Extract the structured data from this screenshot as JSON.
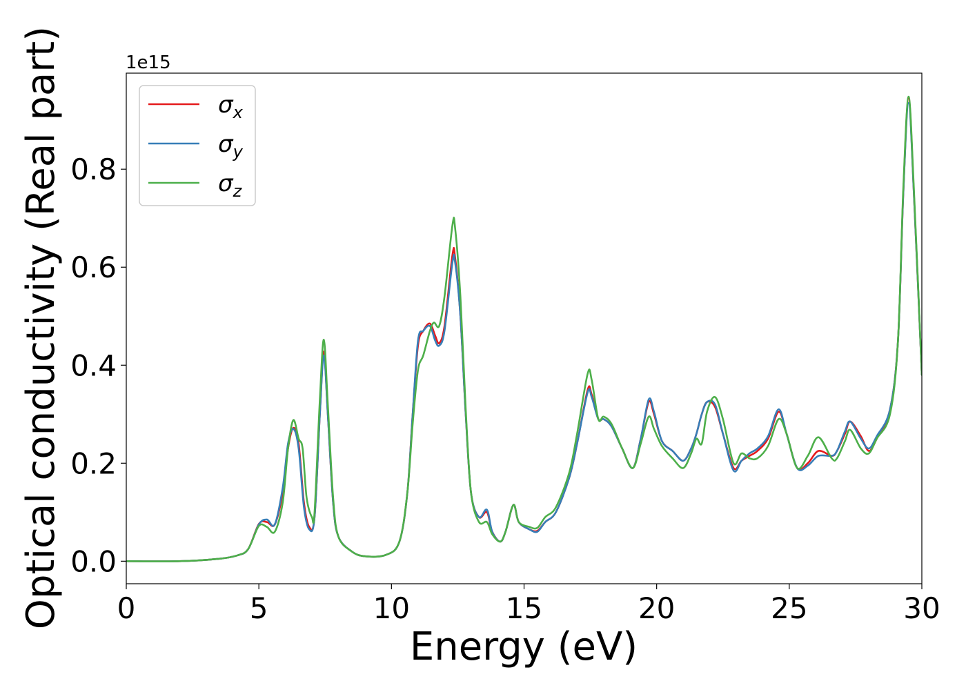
{
  "chart_data": {
    "type": "line",
    "xlabel": "Energy (eV)",
    "ylabel": "Optical conductivity (Real part)",
    "y_offset_label": "1e15",
    "y_scale_factor": 1000000000000000.0,
    "xlim": [
      0,
      30
    ],
    "ylim": [
      -0.046,
      0.996
    ],
    "xticks": [
      0,
      5,
      10,
      15,
      20,
      25,
      30
    ],
    "xtick_labels": [
      "0",
      "5",
      "10",
      "15",
      "20",
      "25",
      "30"
    ],
    "yticks": [
      0.0,
      0.2,
      0.4,
      0.6,
      0.8
    ],
    "ytick_labels": [
      "0.0",
      "0.2",
      "0.4",
      "0.6",
      "0.8"
    ],
    "grid": false,
    "legend_position": "top-left",
    "series": [
      {
        "name": "σx",
        "symbol": "σ",
        "subscript": "x",
        "color": "#e41a1c",
        "points": [
          [
            0,
            0.0
          ],
          [
            2,
            0.0
          ],
          [
            3.5,
            0.005
          ],
          [
            4.2,
            0.012
          ],
          [
            4.6,
            0.025
          ],
          [
            5.0,
            0.076
          ],
          [
            5.3,
            0.08
          ],
          [
            5.6,
            0.075
          ],
          [
            5.9,
            0.14
          ],
          [
            6.1,
            0.23
          ],
          [
            6.3,
            0.272
          ],
          [
            6.5,
            0.24
          ],
          [
            6.7,
            0.12
          ],
          [
            6.9,
            0.07
          ],
          [
            7.1,
            0.09
          ],
          [
            7.3,
            0.3
          ],
          [
            7.45,
            0.428
          ],
          [
            7.6,
            0.3
          ],
          [
            7.8,
            0.12
          ],
          [
            8.0,
            0.05
          ],
          [
            8.5,
            0.02
          ],
          [
            9.0,
            0.01
          ],
          [
            9.8,
            0.013
          ],
          [
            10.3,
            0.04
          ],
          [
            10.6,
            0.14
          ],
          [
            10.8,
            0.3
          ],
          [
            11.0,
            0.44
          ],
          [
            11.2,
            0.47
          ],
          [
            11.45,
            0.485
          ],
          [
            11.65,
            0.46
          ],
          [
            11.8,
            0.445
          ],
          [
            12.0,
            0.48
          ],
          [
            12.3,
            0.625
          ],
          [
            12.4,
            0.62
          ],
          [
            12.6,
            0.5
          ],
          [
            12.8,
            0.3
          ],
          [
            13.0,
            0.14
          ],
          [
            13.3,
            0.09
          ],
          [
            13.6,
            0.1
          ],
          [
            13.8,
            0.06
          ],
          [
            14.1,
            0.04
          ],
          [
            14.3,
            0.06
          ],
          [
            14.6,
            0.115
          ],
          [
            14.8,
            0.08
          ],
          [
            15.2,
            0.065
          ],
          [
            15.5,
            0.062
          ],
          [
            15.8,
            0.08
          ],
          [
            16.2,
            0.1
          ],
          [
            16.7,
            0.17
          ],
          [
            17.0,
            0.24
          ],
          [
            17.4,
            0.35
          ],
          [
            17.55,
            0.34
          ],
          [
            17.8,
            0.29
          ],
          [
            18.0,
            0.29
          ],
          [
            18.3,
            0.275
          ],
          [
            18.7,
            0.23
          ],
          [
            19.1,
            0.19
          ],
          [
            19.4,
            0.25
          ],
          [
            19.7,
            0.325
          ],
          [
            19.9,
            0.3
          ],
          [
            20.2,
            0.245
          ],
          [
            20.6,
            0.225
          ],
          [
            21.0,
            0.205
          ],
          [
            21.3,
            0.23
          ],
          [
            21.5,
            0.26
          ],
          [
            21.7,
            0.3
          ],
          [
            21.9,
            0.325
          ],
          [
            22.2,
            0.315
          ],
          [
            22.5,
            0.26
          ],
          [
            22.9,
            0.19
          ],
          [
            23.2,
            0.205
          ],
          [
            23.5,
            0.215
          ],
          [
            23.8,
            0.225
          ],
          [
            24.2,
            0.25
          ],
          [
            24.6,
            0.305
          ],
          [
            24.9,
            0.26
          ],
          [
            25.3,
            0.19
          ],
          [
            25.7,
            0.2
          ],
          [
            26.1,
            0.225
          ],
          [
            26.6,
            0.215
          ],
          [
            26.8,
            0.225
          ],
          [
            27.1,
            0.26
          ],
          [
            27.3,
            0.285
          ],
          [
            27.7,
            0.255
          ],
          [
            28.0,
            0.225
          ],
          [
            28.3,
            0.25
          ],
          [
            28.8,
            0.31
          ],
          [
            29.1,
            0.45
          ],
          [
            29.3,
            0.75
          ],
          [
            29.5,
            0.945
          ],
          [
            29.7,
            0.75
          ],
          [
            30.0,
            0.38
          ]
        ]
      },
      {
        "name": "σy",
        "symbol": "σ",
        "subscript": "y",
        "color": "#377eb8",
        "points": [
          [
            0,
            0.0
          ],
          [
            2,
            0.0
          ],
          [
            3.5,
            0.005
          ],
          [
            4.2,
            0.012
          ],
          [
            4.6,
            0.025
          ],
          [
            5.0,
            0.075
          ],
          [
            5.3,
            0.085
          ],
          [
            5.6,
            0.075
          ],
          [
            5.9,
            0.15
          ],
          [
            6.1,
            0.24
          ],
          [
            6.3,
            0.27
          ],
          [
            6.5,
            0.23
          ],
          [
            6.7,
            0.11
          ],
          [
            6.9,
            0.065
          ],
          [
            7.1,
            0.09
          ],
          [
            7.3,
            0.3
          ],
          [
            7.45,
            0.42
          ],
          [
            7.6,
            0.3
          ],
          [
            7.8,
            0.12
          ],
          [
            8.0,
            0.05
          ],
          [
            8.5,
            0.02
          ],
          [
            9.0,
            0.01
          ],
          [
            9.8,
            0.013
          ],
          [
            10.3,
            0.04
          ],
          [
            10.6,
            0.14
          ],
          [
            10.8,
            0.3
          ],
          [
            11.0,
            0.45
          ],
          [
            11.2,
            0.47
          ],
          [
            11.45,
            0.48
          ],
          [
            11.65,
            0.45
          ],
          [
            11.8,
            0.44
          ],
          [
            12.0,
            0.47
          ],
          [
            12.3,
            0.61
          ],
          [
            12.4,
            0.61
          ],
          [
            12.6,
            0.5
          ],
          [
            12.8,
            0.3
          ],
          [
            13.0,
            0.14
          ],
          [
            13.3,
            0.09
          ],
          [
            13.6,
            0.105
          ],
          [
            13.8,
            0.06
          ],
          [
            14.1,
            0.04
          ],
          [
            14.3,
            0.06
          ],
          [
            14.6,
            0.115
          ],
          [
            14.8,
            0.08
          ],
          [
            15.2,
            0.065
          ],
          [
            15.5,
            0.06
          ],
          [
            15.8,
            0.08
          ],
          [
            16.2,
            0.1
          ],
          [
            16.7,
            0.17
          ],
          [
            17.0,
            0.24
          ],
          [
            17.4,
            0.345
          ],
          [
            17.55,
            0.335
          ],
          [
            17.8,
            0.29
          ],
          [
            18.0,
            0.29
          ],
          [
            18.3,
            0.275
          ],
          [
            18.7,
            0.23
          ],
          [
            19.1,
            0.19
          ],
          [
            19.4,
            0.25
          ],
          [
            19.7,
            0.33
          ],
          [
            19.9,
            0.305
          ],
          [
            20.2,
            0.245
          ],
          [
            20.6,
            0.225
          ],
          [
            21.0,
            0.205
          ],
          [
            21.3,
            0.23
          ],
          [
            21.5,
            0.26
          ],
          [
            21.7,
            0.3
          ],
          [
            21.9,
            0.325
          ],
          [
            22.2,
            0.32
          ],
          [
            22.5,
            0.26
          ],
          [
            22.9,
            0.185
          ],
          [
            23.2,
            0.205
          ],
          [
            23.5,
            0.22
          ],
          [
            23.8,
            0.23
          ],
          [
            24.2,
            0.255
          ],
          [
            24.6,
            0.31
          ],
          [
            24.9,
            0.26
          ],
          [
            25.3,
            0.19
          ],
          [
            25.7,
            0.195
          ],
          [
            26.1,
            0.215
          ],
          [
            26.6,
            0.215
          ],
          [
            26.8,
            0.225
          ],
          [
            27.1,
            0.265
          ],
          [
            27.3,
            0.285
          ],
          [
            27.7,
            0.25
          ],
          [
            28.0,
            0.23
          ],
          [
            28.3,
            0.255
          ],
          [
            28.8,
            0.31
          ],
          [
            29.1,
            0.45
          ],
          [
            29.3,
            0.75
          ],
          [
            29.5,
            0.935
          ],
          [
            29.7,
            0.75
          ],
          [
            30.0,
            0.38
          ]
        ]
      },
      {
        "name": "σz",
        "symbol": "σ",
        "subscript": "z",
        "color": "#4daf4a",
        "points": [
          [
            0,
            0.0
          ],
          [
            2,
            0.0
          ],
          [
            3.5,
            0.005
          ],
          [
            4.2,
            0.012
          ],
          [
            4.6,
            0.025
          ],
          [
            5.0,
            0.072
          ],
          [
            5.3,
            0.07
          ],
          [
            5.6,
            0.06
          ],
          [
            5.9,
            0.12
          ],
          [
            6.1,
            0.23
          ],
          [
            6.3,
            0.288
          ],
          [
            6.5,
            0.25
          ],
          [
            6.65,
            0.23
          ],
          [
            6.8,
            0.13
          ],
          [
            7.0,
            0.09
          ],
          [
            7.1,
            0.1
          ],
          [
            7.3,
            0.33
          ],
          [
            7.45,
            0.452
          ],
          [
            7.6,
            0.32
          ],
          [
            7.8,
            0.13
          ],
          [
            8.0,
            0.05
          ],
          [
            8.5,
            0.02
          ],
          [
            9.0,
            0.01
          ],
          [
            9.8,
            0.013
          ],
          [
            10.3,
            0.04
          ],
          [
            10.6,
            0.14
          ],
          [
            10.8,
            0.28
          ],
          [
            11.0,
            0.39
          ],
          [
            11.2,
            0.42
          ],
          [
            11.45,
            0.47
          ],
          [
            11.6,
            0.487
          ],
          [
            11.8,
            0.48
          ],
          [
            12.0,
            0.54
          ],
          [
            12.3,
            0.686
          ],
          [
            12.4,
            0.68
          ],
          [
            12.6,
            0.54
          ],
          [
            12.8,
            0.31
          ],
          [
            13.0,
            0.14
          ],
          [
            13.3,
            0.08
          ],
          [
            13.6,
            0.08
          ],
          [
            13.8,
            0.055
          ],
          [
            14.1,
            0.04
          ],
          [
            14.3,
            0.06
          ],
          [
            14.6,
            0.115
          ],
          [
            14.8,
            0.08
          ],
          [
            15.2,
            0.07
          ],
          [
            15.5,
            0.068
          ],
          [
            15.8,
            0.09
          ],
          [
            16.2,
            0.11
          ],
          [
            16.7,
            0.18
          ],
          [
            17.0,
            0.26
          ],
          [
            17.4,
            0.383
          ],
          [
            17.55,
            0.37
          ],
          [
            17.8,
            0.29
          ],
          [
            18.0,
            0.295
          ],
          [
            18.3,
            0.28
          ],
          [
            18.7,
            0.23
          ],
          [
            19.1,
            0.19
          ],
          [
            19.4,
            0.24
          ],
          [
            19.7,
            0.295
          ],
          [
            19.9,
            0.27
          ],
          [
            20.2,
            0.235
          ],
          [
            20.6,
            0.21
          ],
          [
            21.0,
            0.19
          ],
          [
            21.3,
            0.22
          ],
          [
            21.5,
            0.25
          ],
          [
            21.7,
            0.24
          ],
          [
            21.9,
            0.305
          ],
          [
            22.2,
            0.335
          ],
          [
            22.5,
            0.29
          ],
          [
            22.9,
            0.2
          ],
          [
            23.2,
            0.22
          ],
          [
            23.5,
            0.21
          ],
          [
            23.8,
            0.21
          ],
          [
            24.2,
            0.235
          ],
          [
            24.6,
            0.29
          ],
          [
            24.9,
            0.26
          ],
          [
            25.3,
            0.19
          ],
          [
            25.7,
            0.215
          ],
          [
            26.1,
            0.253
          ],
          [
            26.6,
            0.21
          ],
          [
            26.8,
            0.21
          ],
          [
            27.1,
            0.245
          ],
          [
            27.3,
            0.268
          ],
          [
            27.7,
            0.23
          ],
          [
            28.0,
            0.22
          ],
          [
            28.3,
            0.25
          ],
          [
            28.8,
            0.3
          ],
          [
            29.1,
            0.45
          ],
          [
            29.3,
            0.76
          ],
          [
            29.5,
            0.948
          ],
          [
            29.7,
            0.76
          ],
          [
            30.0,
            0.38
          ]
        ]
      }
    ]
  }
}
